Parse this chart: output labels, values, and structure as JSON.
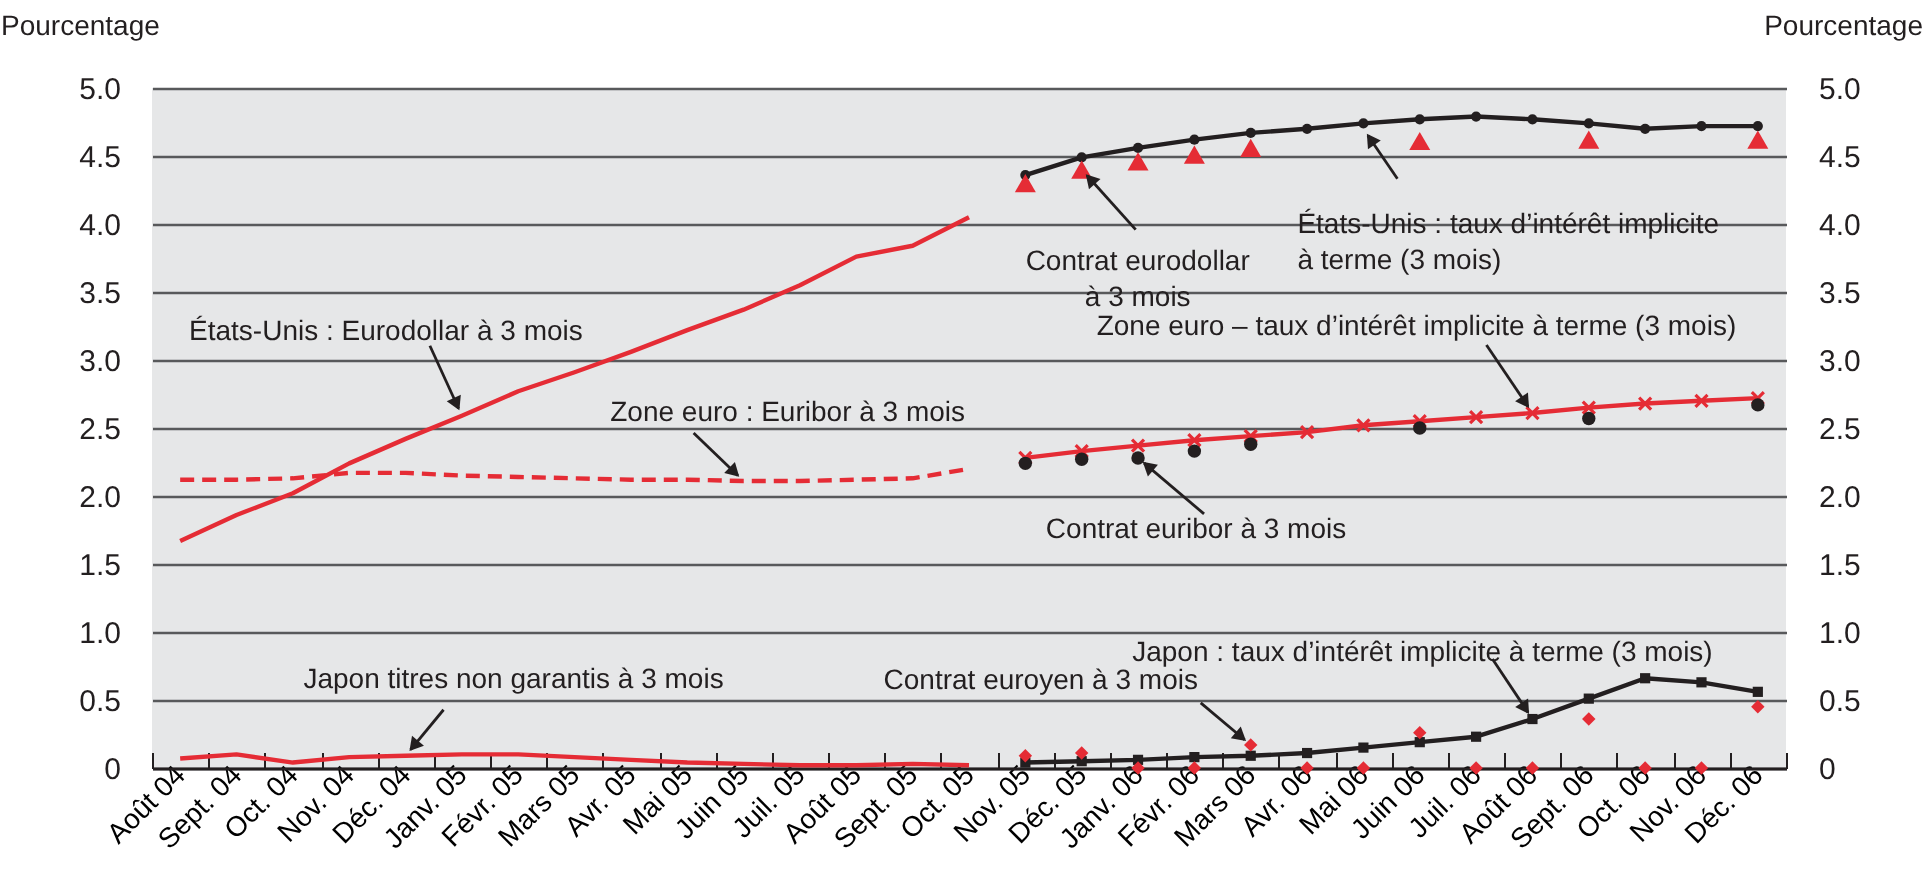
{
  "chart_data": {
    "type": "line",
    "ylabel": "Pourcentage",
    "y2label": "Pourcentage",
    "categories": [
      "Août 04",
      "Sept. 04",
      "Oct. 04",
      "Nov. 04",
      "Déc. 04",
      "Janv. 05",
      "Févr. 05",
      "Mars 05",
      "Avr. 05",
      "Mai 05",
      "Juin 05",
      "Juil. 05",
      "Août 05",
      "Sept. 05",
      "Oct. 05",
      "Nov. 05",
      "Déc. 05",
      "Janv. 06",
      "Févr. 06",
      "Mars 06",
      "Avr. 06",
      "Mai 06",
      "Juin 06",
      "Juil. 06",
      "Août 06",
      "Sept. 06",
      "Oct. 06",
      "Nov. 06",
      "Déc. 06"
    ],
    "series": [
      {
        "line_style": "solid",
        "color": "#e52c35",
        "values": [
          1.67,
          1.86,
          2.02,
          2.24,
          2.42,
          2.59,
          2.77,
          2.91,
          3.06,
          3.22,
          3.37,
          3.55,
          3.76,
          3.84,
          4.05,
          null,
          null,
          null,
          null,
          null,
          null,
          null,
          null,
          null,
          null,
          null,
          null,
          null,
          null
        ]
      },
      {
        "line_style": "dashed",
        "color": "#e52c35",
        "values": [
          2.12,
          2.12,
          2.13,
          2.17,
          2.17,
          2.15,
          2.14,
          2.13,
          2.12,
          2.12,
          2.11,
          2.11,
          2.12,
          2.13,
          2.2,
          null,
          null,
          null,
          null,
          null,
          null,
          null,
          null,
          null,
          null,
          null,
          null,
          null,
          null
        ]
      },
      {
        "line_style": "solid",
        "color": "#e52c35",
        "values": [
          0.07,
          0.1,
          0.04,
          0.08,
          0.09,
          0.1,
          0.1,
          0.08,
          0.06,
          0.04,
          0.03,
          0.02,
          0.02,
          0.03,
          0.02,
          null,
          null,
          null,
          null,
          null,
          null,
          null,
          null,
          null,
          null,
          null,
          null,
          null,
          null
        ]
      },
      {
        "line_style": "solid",
        "marker": "circle",
        "color": "#231f20",
        "values": [
          null,
          null,
          null,
          null,
          null,
          null,
          null,
          null,
          null,
          null,
          null,
          null,
          null,
          null,
          null,
          4.36,
          4.49,
          4.56,
          4.62,
          4.67,
          4.7,
          4.74,
          4.77,
          4.79,
          4.77,
          4.74,
          4.7,
          4.72,
          4.72
        ]
      },
      {
        "type": "scatter",
        "marker": "triangle",
        "color": "#e52c35",
        "values": [
          null,
          null,
          null,
          null,
          null,
          null,
          null,
          null,
          null,
          null,
          null,
          null,
          null,
          null,
          null,
          4.3,
          4.4,
          4.46,
          4.51,
          4.56,
          null,
          null,
          4.61,
          null,
          null,
          4.62,
          null,
          null,
          4.62
        ]
      },
      {
        "line_style": "solid",
        "marker": "cross",
        "color": "#e52c35",
        "values": [
          null,
          null,
          null,
          null,
          null,
          null,
          null,
          null,
          null,
          null,
          null,
          null,
          null,
          null,
          null,
          2.28,
          2.33,
          2.37,
          2.41,
          2.44,
          2.47,
          2.52,
          2.55,
          2.58,
          2.61,
          2.65,
          2.68,
          2.7,
          2.72
        ]
      },
      {
        "type": "scatter",
        "marker": "circle",
        "color": "#231f20",
        "values": [
          null,
          null,
          null,
          null,
          null,
          null,
          null,
          null,
          null,
          null,
          null,
          null,
          null,
          null,
          null,
          2.24,
          2.27,
          2.28,
          2.33,
          2.38,
          null,
          null,
          2.5,
          null,
          null,
          2.57,
          null,
          null,
          2.67
        ]
      },
      {
        "line_style": "solid",
        "marker": "square",
        "color": "#231f20",
        "values": [
          null,
          null,
          null,
          null,
          null,
          null,
          null,
          null,
          null,
          null,
          null,
          null,
          null,
          null,
          null,
          0.04,
          0.05,
          0.06,
          0.08,
          0.09,
          0.11,
          0.15,
          0.19,
          0.23,
          0.36,
          0.51,
          0.66,
          0.63,
          0.56
        ]
      },
      {
        "type": "scatter",
        "marker": "diamond",
        "color": "#e52c35",
        "values": [
          null,
          null,
          null,
          null,
          null,
          null,
          null,
          null,
          null,
          null,
          null,
          null,
          null,
          null,
          null,
          0.09,
          0.11,
          0,
          0,
          0.17,
          0,
          0,
          0.26,
          0,
          0,
          0.36,
          0,
          0,
          0.45
        ]
      }
    ],
    "ylim": [
      0,
      5
    ],
    "yticks": [
      0,
      0.5,
      {
        "value": 1,
        "label": "1.0"
      },
      1.5,
      {
        "value": 2,
        "label": "2.0"
      },
      2.5,
      {
        "value": 3,
        "label": "3.0"
      },
      3.5,
      {
        "value": 4,
        "label": "4.0"
      },
      4.5,
      {
        "value": 5,
        "label": "5.0"
      }
    ],
    "y2lim": [
      0,
      5
    ],
    "y2ticks": [
      0,
      0.5,
      {
        "value": 1,
        "label": "1.0"
      },
      1.5,
      {
        "value": 2,
        "label": "2.0"
      },
      2.5,
      {
        "value": 3,
        "label": "3.0"
      },
      3.5,
      {
        "value": 4,
        "label": "4.0"
      },
      4.5,
      {
        "value": 5,
        "label": "5.0"
      }
    ],
    "grid": "y",
    "annotations": [
      {
        "text": "États-Unis : Eurodollar à 3 mois",
        "x": "Janv. 05",
        "y": 2.59
      },
      {
        "text": "Zone euro : Euribor à 3 mois",
        "x": "Juin 05",
        "y": 2.11
      },
      {
        "text": "Japon titres non garantis à 3 mois",
        "x": "Déc. 04",
        "y": 0.09
      },
      {
        "text": "Contrat eurodollar à 3 mois",
        "x": "Déc. 05",
        "y": 4.4
      },
      {
        "text": "États-Unis : taux d’intérêt implicite à terme (3 mois)",
        "x": "Mai 06",
        "y": 4.7
      },
      {
        "text": "Zone euro – taux d’intérêt implicite à terme (3 mois)",
        "x": "Août 06",
        "y": 2.61
      },
      {
        "text": "Contrat euribor à 3 mois",
        "x": "Janv. 06",
        "y": 2.28
      },
      {
        "text": "Contrat euroyen à 3 mois",
        "x": "Mars 06",
        "y": 0.17
      },
      {
        "text": "Japon : taux d’intérêt implicite à terme (3 mois)",
        "x": "Août 06",
        "y": 0.36
      }
    ]
  }
}
